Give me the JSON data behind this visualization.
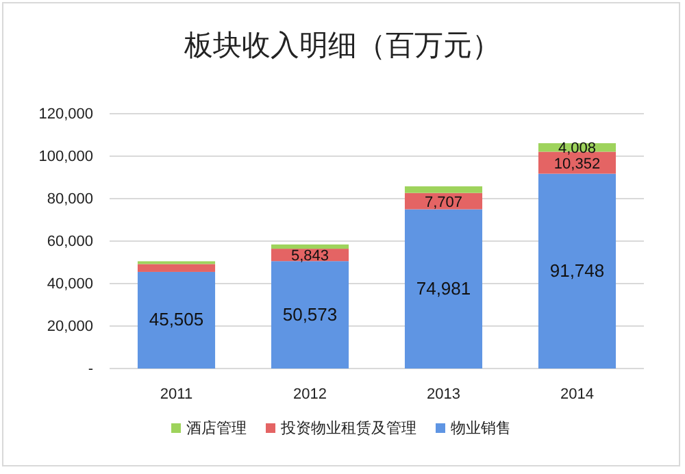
{
  "chart_data": {
    "type": "bar",
    "title": "板块收入明细（百万元）",
    "categories": [
      "2011",
      "2012",
      "2013",
      "2014"
    ],
    "stacked": true,
    "series": [
      {
        "name": "物业销售",
        "color": "#5f95e3",
        "values": [
          45505,
          50573,
          74981,
          91748
        ],
        "value_labels": [
          "45,505",
          "50,573",
          "74,981",
          "91,748"
        ]
      },
      {
        "name": "投资物业租赁及管理",
        "color": "#e46464",
        "values": [
          3700,
          5843,
          7707,
          10352
        ],
        "value_labels": [
          null,
          "5,843",
          "7,707",
          "10,352"
        ]
      },
      {
        "name": "酒店管理",
        "color": "#9ed35c",
        "values": [
          1300,
          2000,
          3100,
          4008
        ],
        "value_labels": [
          null,
          null,
          null,
          "4,008"
        ]
      }
    ],
    "ylim": [
      0,
      120000
    ],
    "yticks": [
      {
        "value": 0,
        "label": "-"
      },
      {
        "value": 20000,
        "label": "20,000"
      },
      {
        "value": 40000,
        "label": "40,000"
      },
      {
        "value": 60000,
        "label": "60,000"
      },
      {
        "value": 80000,
        "label": "80,000"
      },
      {
        "value": 100000,
        "label": "100,000"
      },
      {
        "value": 120000,
        "label": "120,000"
      }
    ],
    "grid": "y",
    "legend": "bottom"
  }
}
